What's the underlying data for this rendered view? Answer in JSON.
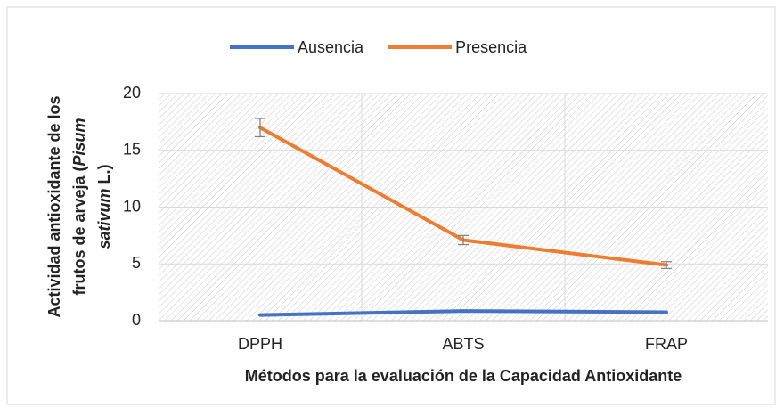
{
  "chart_data": {
    "type": "line",
    "x_label": "Métodos para la evaluación de la Capacidad Antioxidante",
    "y_label_lines": [
      [
        {
          "text": "Actividad antioxidante de los",
          "italic": false
        }
      ],
      [
        {
          "text": "frutos de arveja (",
          "italic": false
        },
        {
          "text": "Pisum",
          "italic": true
        }
      ],
      [
        {
          "text": "sativum",
          "italic": true
        },
        {
          "text": " L.)",
          "italic": false
        }
      ]
    ],
    "categories": [
      "DPPH",
      "ABTS",
      "FRAP"
    ],
    "series": [
      {
        "name": "Ausencia",
        "color": "#4472c4",
        "values": [
          0.5,
          0.85,
          0.75
        ]
      },
      {
        "name": "Presencia",
        "color": "#ed7d31",
        "values": [
          17,
          7.1,
          4.9
        ],
        "errors": [
          0.8,
          0.4,
          0.3
        ]
      }
    ],
    "ylim": [
      0,
      20
    ],
    "yticks": [
      0,
      5,
      10,
      15,
      20
    ],
    "grid": true,
    "legend": "top"
  }
}
